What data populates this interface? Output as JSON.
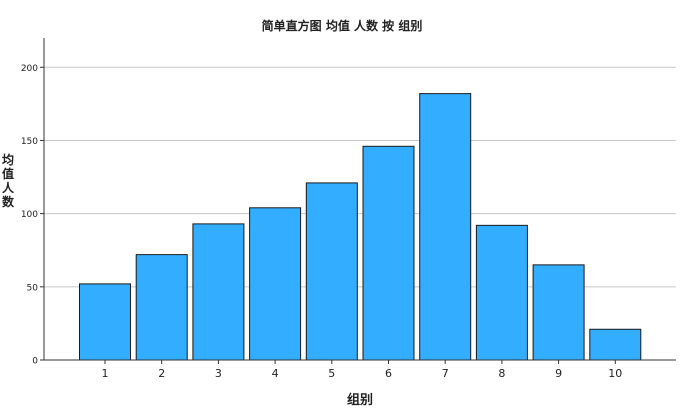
{
  "chart_data": {
    "type": "bar",
    "title": "简单直方图 均值 人数 按 组别",
    "xlabel": "组别",
    "ylabel": "均值人数",
    "categories": [
      "1",
      "2",
      "3",
      "4",
      "5",
      "6",
      "7",
      "8",
      "9",
      "10"
    ],
    "values": [
      52,
      72,
      93,
      104,
      121,
      146,
      182,
      92,
      65,
      21
    ],
    "ylim": [
      0,
      220
    ],
    "yticks": [
      0,
      50,
      100,
      150,
      200
    ],
    "grid": true,
    "legend": "none",
    "colors": {
      "bar_fill": "#33adff",
      "bar_stroke": "#1a1a1a",
      "grid": "#c8c8c8",
      "axis": "#333333"
    }
  }
}
